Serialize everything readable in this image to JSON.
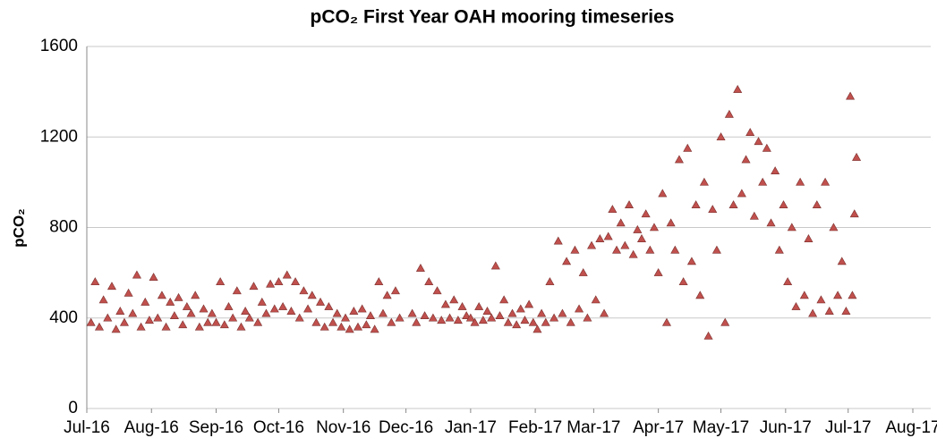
{
  "chart_data": {
    "type": "scatter",
    "title": "pCO₂ First Year OAH mooring timeseries",
    "y_label": "pCO₂",
    "xlim": [
      42552,
      42948
    ],
    "xticks": [
      {
        "value": 42552,
        "label": "Jul-16"
      },
      {
        "value": 42583,
        "label": "Aug-16"
      },
      {
        "value": 42614,
        "label": "Sep-16"
      },
      {
        "value": 42644,
        "label": "Oct-16"
      },
      {
        "value": 42675,
        "label": "Nov-16"
      },
      {
        "value": 42705,
        "label": "Dec-16"
      },
      {
        "value": 42736,
        "label": "Jan-17"
      },
      {
        "value": 42767,
        "label": "Feb-17"
      },
      {
        "value": 42795,
        "label": "Mar-17"
      },
      {
        "value": 42826,
        "label": "Apr-17"
      },
      {
        "value": 42856,
        "label": "May-17"
      },
      {
        "value": 42887,
        "label": "Jun-17"
      },
      {
        "value": 42917,
        "label": "Jul-17"
      },
      {
        "value": 42948,
        "label": "Aug-17"
      }
    ],
    "ylim": [
      0,
      1600
    ],
    "yticks": [
      0,
      400,
      800,
      1200,
      1600
    ],
    "grid": true,
    "x": [
      42554,
      42556,
      42558,
      42560,
      42562,
      42564,
      42566,
      42568,
      42570,
      42572,
      42574,
      42576,
      42578,
      42580,
      42582,
      42584,
      42586,
      42588,
      42590,
      42592,
      42594,
      42596,
      42598,
      42600,
      42602,
      42604,
      42606,
      42608,
      42610,
      42612,
      42614,
      42616,
      42618,
      42620,
      42622,
      42624,
      42626,
      42628,
      42630,
      42632,
      42634,
      42636,
      42638,
      42640,
      42642,
      42644,
      42646,
      42648,
      42650,
      42652,
      42654,
      42656,
      42658,
      42660,
      42662,
      42664,
      42666,
      42668,
      42670,
      42672,
      42674,
      42676,
      42678,
      42680,
      42682,
      42684,
      42686,
      42688,
      42690,
      42692,
      42694,
      42696,
      42698,
      42700,
      42702,
      42708,
      42710,
      42712,
      42714,
      42716,
      42718,
      42720,
      42722,
      42724,
      42726,
      42728,
      42730,
      42732,
      42734,
      42736,
      42738,
      42740,
      42742,
      42744,
      42746,
      42748,
      42750,
      42752,
      42754,
      42756,
      42758,
      42760,
      42762,
      42764,
      42766,
      42768,
      42770,
      42772,
      42774,
      42776,
      42778,
      42780,
      42782,
      42784,
      42786,
      42788,
      42790,
      42792,
      42794,
      42796,
      42798,
      42800,
      42802,
      42804,
      42806,
      42808,
      42810,
      42812,
      42814,
      42816,
      42818,
      42820,
      42822,
      42824,
      42826,
      42828,
      42830,
      42832,
      42834,
      42836,
      42838,
      42840,
      42842,
      42844,
      42846,
      42848,
      42850,
      42852,
      42854,
      42856,
      42858,
      42860,
      42862,
      42864,
      42866,
      42868,
      42870,
      42872,
      42874,
      42876,
      42878,
      42880,
      42882,
      42884,
      42886,
      42888,
      42890,
      42892,
      42894,
      42896,
      42898,
      42900,
      42902,
      42904,
      42906,
      42908,
      42910,
      42912,
      42914,
      42916,
      42918,
      42919,
      42920,
      42921
    ],
    "series": [
      {
        "color": "#c0504d",
        "values": [
          380,
          560,
          360,
          480,
          400,
          540,
          350,
          430,
          380,
          510,
          420,
          590,
          360,
          470,
          390,
          580,
          400,
          500,
          360,
          470,
          410,
          490,
          370,
          450,
          420,
          500,
          360,
          440,
          380,
          420,
          380,
          560,
          370,
          450,
          400,
          520,
          360,
          430,
          400,
          540,
          380,
          470,
          420,
          550,
          440,
          560,
          450,
          590,
          430,
          560,
          400,
          520,
          440,
          500,
          380,
          470,
          360,
          450,
          380,
          420,
          360,
          400,
          350,
          430,
          360,
          440,
          370,
          410,
          350,
          560,
          420,
          500,
          380,
          520,
          400,
          420,
          380,
          620,
          410,
          560,
          400,
          520,
          390,
          460,
          400,
          480,
          390,
          450,
          410,
          400,
          380,
          450,
          390,
          430,
          400,
          630,
          410,
          480,
          380,
          420,
          370,
          440,
          390,
          460,
          380,
          350,
          420,
          380,
          560,
          400,
          740,
          420,
          650,
          380,
          700,
          440,
          600,
          400,
          720,
          480,
          750,
          420,
          760,
          880,
          700,
          820,
          720,
          900,
          680,
          790,
          750,
          860,
          700,
          800,
          600,
          950,
          380,
          820,
          700,
          1100,
          560,
          1150,
          650,
          900,
          500,
          1000,
          320,
          880,
          700,
          1200,
          380,
          1300,
          900,
          1410,
          950,
          1100,
          1220,
          850,
          1180,
          1000,
          1150,
          820,
          1050,
          700,
          900,
          560,
          800,
          450,
          1000,
          500,
          750,
          420,
          900,
          480,
          1000,
          430,
          800,
          500,
          650,
          430,
          1380,
          500,
          860,
          1110
        ]
      }
    ]
  }
}
